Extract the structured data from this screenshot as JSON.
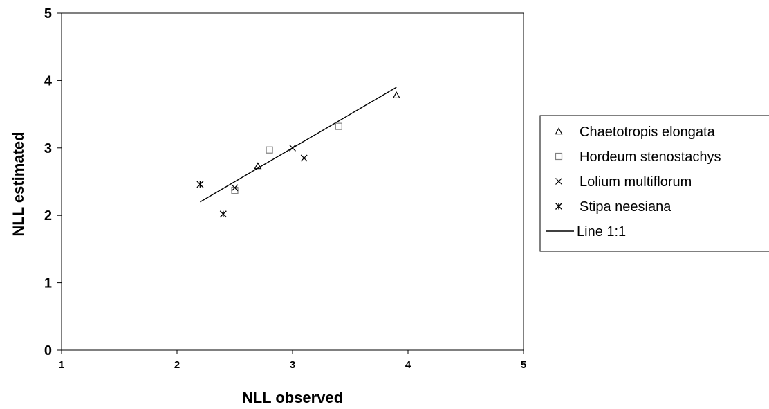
{
  "chart_data": {
    "type": "scatter",
    "xlabel": "NLL observed",
    "ylabel": "NLL estimated",
    "xlim": [
      1,
      5
    ],
    "ylim": [
      0,
      5
    ],
    "x_ticks": [
      "1",
      "2",
      "3",
      "4",
      "5"
    ],
    "y_ticks": [
      "0",
      "1",
      "2",
      "3",
      "4",
      "5"
    ],
    "grid": false,
    "legend_position": "right",
    "series": [
      {
        "name": "Chaetotropis elongata",
        "marker": "triangle",
        "color": "#000000",
        "points": [
          [
            2.7,
            2.73
          ],
          [
            3.9,
            3.78
          ]
        ]
      },
      {
        "name": "Hordeum stenostachys",
        "marker": "square",
        "color": "#808080",
        "points": [
          [
            2.5,
            2.37
          ],
          [
            2.8,
            2.97
          ],
          [
            3.4,
            3.32
          ]
        ]
      },
      {
        "name": "Lolium multiflorum",
        "marker": "x",
        "color": "#000000",
        "points": [
          [
            2.5,
            2.41
          ],
          [
            3.0,
            3.0
          ],
          [
            3.1,
            2.85
          ]
        ]
      },
      {
        "name": "Stipa neesiana",
        "marker": "asterisk",
        "color": "#000000",
        "points": [
          [
            2.2,
            2.46
          ],
          [
            2.4,
            2.02
          ]
        ]
      }
    ],
    "lines": [
      {
        "name": "Line 1:1",
        "color": "#000000",
        "points": [
          [
            2.2,
            2.2
          ],
          [
            3.9,
            3.9
          ]
        ]
      }
    ]
  }
}
